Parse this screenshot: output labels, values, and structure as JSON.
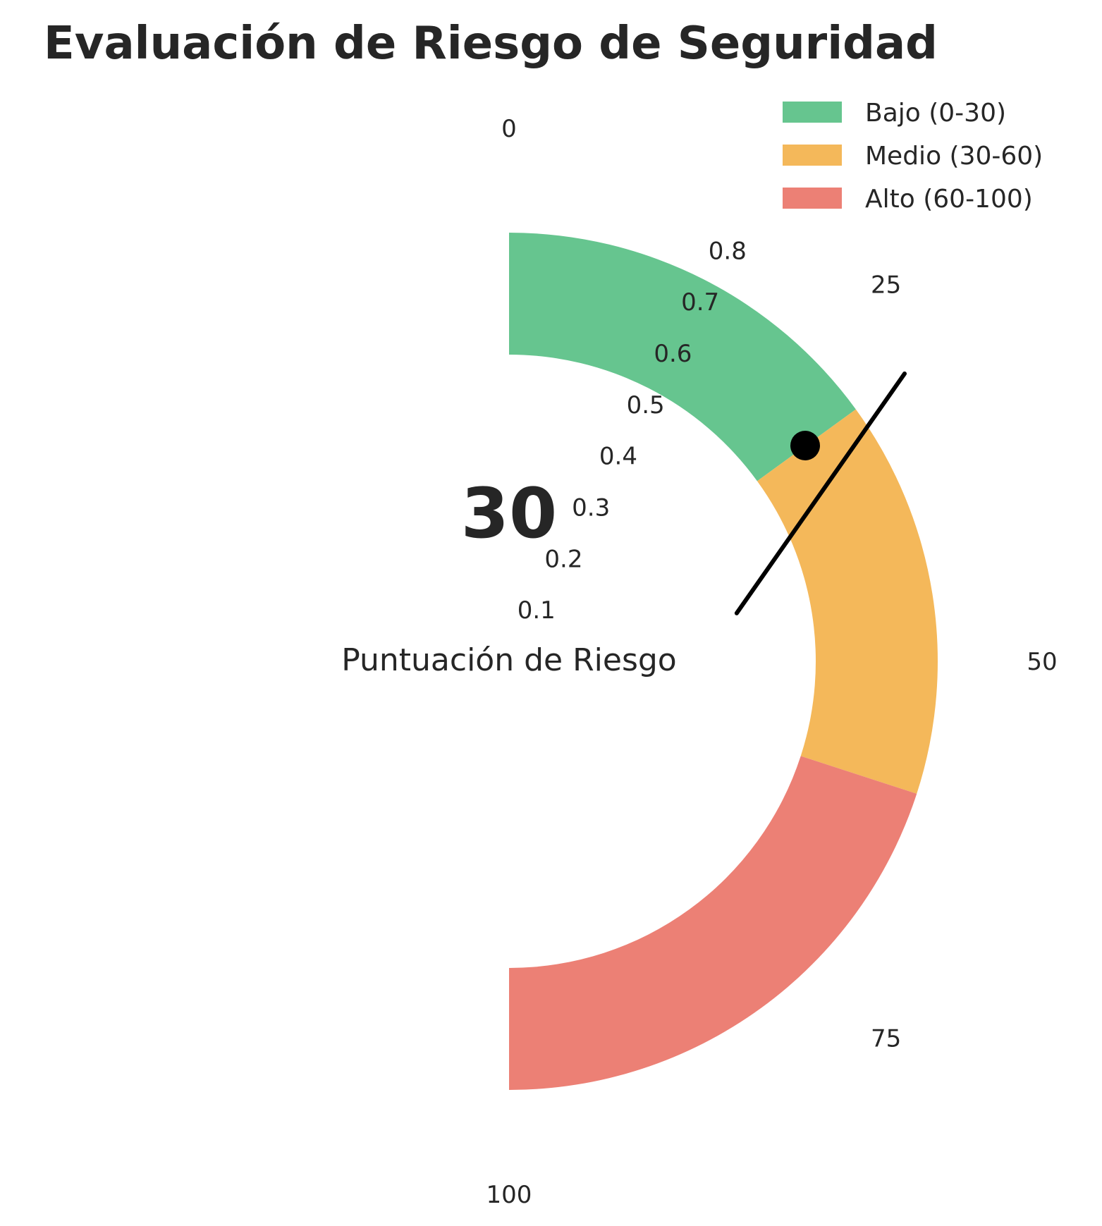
{
  "chart_data": {
    "type": "gauge",
    "title": "Evaluación de Riesgo de Seguridad",
    "value": 30,
    "value_label": "30",
    "label": "Puntuación de Riesgo",
    "range": [
      0,
      100
    ],
    "theta_ticks": [
      "0",
      "25",
      "50",
      "75",
      "100"
    ],
    "theta_tick_values": [
      0,
      25,
      50,
      75,
      100
    ],
    "radial_ticks": [
      "0.1",
      "0.2",
      "0.3",
      "0.4",
      "0.5",
      "0.6",
      "0.7",
      "0.8"
    ],
    "radial_tick_values": [
      0.1,
      0.2,
      0.3,
      0.4,
      0.5,
      0.6,
      0.7,
      0.8
    ],
    "bands": [
      {
        "name": "Bajo (0-30)",
        "from": 0,
        "to": 30,
        "color": "#66c58f"
      },
      {
        "name": "Medio (30-60)",
        "from": 30,
        "to": 60,
        "color": "#f4b85a"
      },
      {
        "name": "Alto (60-100)",
        "from": 60,
        "to": 100,
        "color": "#ec8075"
      }
    ],
    "legend_position": "top-right",
    "grid": false
  }
}
